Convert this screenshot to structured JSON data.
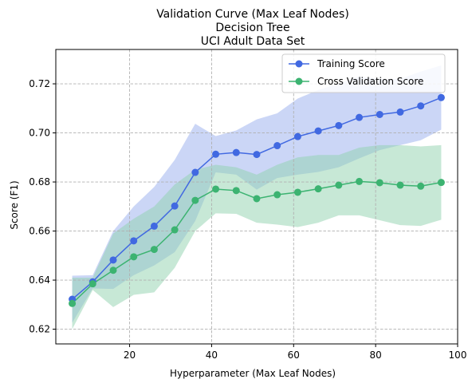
{
  "chart_data": {
    "type": "line",
    "title_lines": [
      "Validation Curve (Max Leaf Nodes)",
      "Decision Tree",
      "UCI Adult Data Set"
    ],
    "xlabel": "Hyperparameter (Max Leaf Nodes)",
    "ylabel": "Score (F1)",
    "xlim": [
      2.0,
      100.0
    ],
    "ylim": [
      0.614,
      0.734
    ],
    "xticks": [
      20,
      40,
      60,
      80,
      100
    ],
    "yticks": [
      0.62,
      0.64,
      0.66,
      0.68,
      0.7,
      0.72
    ],
    "ytick_labels": [
      "0.62",
      "0.64",
      "0.66",
      "0.68",
      "0.70",
      "0.72"
    ],
    "grid": true,
    "legend_position": "top-right",
    "x": [
      6,
      11,
      16,
      21,
      26,
      31,
      36,
      41,
      46,
      51,
      56,
      61,
      66,
      71,
      76,
      81,
      86,
      91,
      96
    ],
    "series": [
      {
        "name": "Training Score",
        "color": "#4169e1",
        "band_color": "#8ba3ea",
        "values": [
          0.6322,
          0.6393,
          0.6482,
          0.656,
          0.662,
          0.6702,
          0.6839,
          0.6913,
          0.692,
          0.6912,
          0.6948,
          0.6985,
          0.7008,
          0.703,
          0.7063,
          0.7075,
          0.7085,
          0.711,
          0.7144
        ],
        "upper": [
          0.6418,
          0.642,
          0.66,
          0.67,
          0.678,
          0.689,
          0.7037,
          0.6987,
          0.701,
          0.7055,
          0.708,
          0.714,
          0.7175,
          0.72,
          0.723,
          0.722,
          0.722,
          0.725,
          0.7275
        ],
        "lower": [
          0.6226,
          0.6366,
          0.6364,
          0.642,
          0.646,
          0.6514,
          0.6641,
          0.6839,
          0.683,
          0.6769,
          0.6816,
          0.683,
          0.6841,
          0.686,
          0.6896,
          0.693,
          0.695,
          0.697,
          0.7013
        ]
      },
      {
        "name": "Cross Validation Score",
        "color": "#3cb371",
        "band_color": "#8fd1ad",
        "values": [
          0.6305,
          0.6385,
          0.644,
          0.6495,
          0.6525,
          0.6605,
          0.6725,
          0.6771,
          0.6765,
          0.6732,
          0.6748,
          0.6758,
          0.6772,
          0.6787,
          0.6802,
          0.6797,
          0.6787,
          0.6783,
          0.6798
        ],
        "upper": [
          0.641,
          0.641,
          0.659,
          0.665,
          0.67,
          0.679,
          0.685,
          0.687,
          0.686,
          0.683,
          0.687,
          0.69,
          0.691,
          0.691,
          0.694,
          0.695,
          0.695,
          0.6945,
          0.695
        ],
        "lower": [
          0.62,
          0.636,
          0.629,
          0.634,
          0.635,
          0.645,
          0.66,
          0.6672,
          0.667,
          0.6634,
          0.6626,
          0.6616,
          0.6634,
          0.6664,
          0.6664,
          0.6644,
          0.6624,
          0.6621,
          0.6646
        ]
      }
    ]
  }
}
